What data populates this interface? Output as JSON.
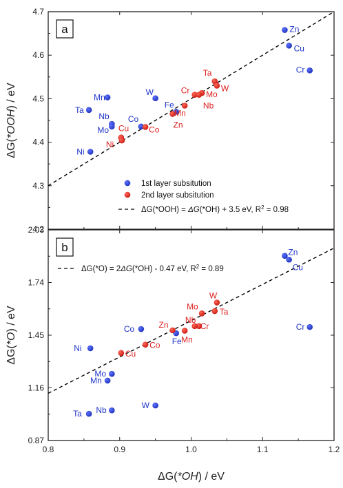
{
  "colors": {
    "first_layer": "#1f35c8",
    "second_layer": "#dd1e1e",
    "axis": "#222222",
    "fit_line": "#000000"
  },
  "chart_data": [
    {
      "type": "scatter",
      "panel_label": "a",
      "xlim": [
        0.8,
        1.2
      ],
      "ylim": [
        4.2,
        4.7
      ],
      "xticks": [
        "0.8",
        "0.9",
        "1.0",
        "1.1",
        "1.2"
      ],
      "yticks": [
        "4.2",
        "4.3",
        "4.4",
        "4.5",
        "4.6",
        "4.7"
      ],
      "ylabel_prefix": "ΔG(",
      "ylabel_species": "*OOH",
      "ylabel_suffix": ") / eV",
      "legend": {
        "entries": [
          "1st layer subsitution",
          "2nd layer subsitution"
        ],
        "fit_prefix": "ΔG(*OOH) = ",
        "fit_italic": "ΔG",
        "fit_rest": "(*OH) + 3.5 eV, R",
        "fit_sup": "2",
        "fit_tail": " = 0.98"
      },
      "fit": {
        "slope": 1.0,
        "intercept": 3.5
      },
      "series": [
        {
          "name": "1st layer subsitution",
          "points": [
            {
              "label": "Zn",
              "x": 1.131,
              "y": 4.658
            },
            {
              "label": "Cu",
              "x": 1.137,
              "y": 4.622
            },
            {
              "label": "Cr",
              "x": 1.166,
              "y": 4.565
            },
            {
              "label": "W",
              "x": 0.95,
              "y": 4.501
            },
            {
              "label": "Mn",
              "x": 0.883,
              "y": 4.503
            },
            {
              "label": "Ta",
              "x": 0.857,
              "y": 4.474
            },
            {
              "label": "Fe",
              "x": 0.979,
              "y": 4.47
            },
            {
              "label": "Nb",
              "x": 0.889,
              "y": 4.442
            },
            {
              "label": "Mo",
              "x": 0.889,
              "y": 4.436
            },
            {
              "label": "Co",
              "x": 0.93,
              "y": 4.436
            },
            {
              "label": "Ni",
              "x": 0.859,
              "y": 4.378
            }
          ]
        },
        {
          "name": "2nd layer subsitution",
          "points": [
            {
              "label": "Ta",
              "x": 1.033,
              "y": 4.54
            },
            {
              "label": "W",
              "x": 1.036,
              "y": 4.53
            },
            {
              "label": "Mo",
              "x": 1.015,
              "y": 4.513
            },
            {
              "label": "Cr",
              "x": 1.005,
              "y": 4.509
            },
            {
              "label": "Nb",
              "x": 1.011,
              "y": 4.509
            },
            {
              "label": "Mn",
              "x": 0.991,
              "y": 4.484
            },
            {
              "label": "Zn",
              "x": 0.974,
              "y": 4.465
            },
            {
              "label": "Co",
              "x": 0.936,
              "y": 4.435
            },
            {
              "label": "Cu",
              "x": 0.902,
              "y": 4.411
            },
            {
              "label": "Ni",
              "x": 0.903,
              "y": 4.404
            }
          ]
        }
      ]
    },
    {
      "type": "scatter",
      "panel_label": "b",
      "xlim": [
        0.8,
        1.2
      ],
      "ylim": [
        0.87,
        2.03
      ],
      "xticks": [
        "0.8",
        "0.9",
        "1.0",
        "1.1",
        "1.2"
      ],
      "yticks": [
        "0.87",
        "1.16",
        "1.45",
        "1.74",
        "2.03"
      ],
      "xlabel_prefix": "ΔG(",
      "xlabel_species": "*OH",
      "xlabel_suffix": ") / eV",
      "ylabel_prefix": "ΔG(",
      "ylabel_species": "*O",
      "ylabel_suffix": ") / eV",
      "legend": {
        "fit_prefix": "ΔG(*O) = 2",
        "fit_italic": "ΔG",
        "fit_rest": "(*OH) - 0.47 eV, R",
        "fit_sup": "2",
        "fit_tail": " = 0.89"
      },
      "fit": {
        "slope": 2.0,
        "intercept": -0.47
      },
      "series": [
        {
          "name": "1st layer subsitution",
          "points": [
            {
              "label": "Zn",
              "x": 1.131,
              "y": 1.887
            },
            {
              "label": "Cu",
              "x": 1.137,
              "y": 1.866
            },
            {
              "label": "Cr",
              "x": 1.166,
              "y": 1.495
            },
            {
              "label": "Co",
              "x": 0.93,
              "y": 1.484
            },
            {
              "label": "Fe",
              "x": 0.979,
              "y": 1.461
            },
            {
              "label": "Ni",
              "x": 0.859,
              "y": 1.378
            },
            {
              "label": "Mo",
              "x": 0.889,
              "y": 1.237
            },
            {
              "label": "Mn",
              "x": 0.883,
              "y": 1.2
            },
            {
              "label": "W",
              "x": 0.95,
              "y": 1.063
            },
            {
              "label": "Nb",
              "x": 0.889,
              "y": 1.036
            },
            {
              "label": "Ta",
              "x": 0.857,
              "y": 1.017
            }
          ]
        },
        {
          "name": "2nd layer subsitution",
          "points": [
            {
              "label": "W",
              "x": 1.036,
              "y": 1.63
            },
            {
              "label": "Ta",
              "x": 1.033,
              "y": 1.583
            },
            {
              "label": "Mo",
              "x": 1.015,
              "y": 1.57
            },
            {
              "label": "Nb",
              "x": 1.011,
              "y": 1.5
            },
            {
              "label": "Cr",
              "x": 1.005,
              "y": 1.5
            },
            {
              "label": "Zn",
              "x": 0.974,
              "y": 1.477
            },
            {
              "label": "Mn",
              "x": 0.991,
              "y": 1.475
            },
            {
              "label": "Co",
              "x": 0.936,
              "y": 1.398
            },
            {
              "label": "Cu",
              "x": 0.902,
              "y": 1.352
            }
          ]
        }
      ]
    }
  ]
}
